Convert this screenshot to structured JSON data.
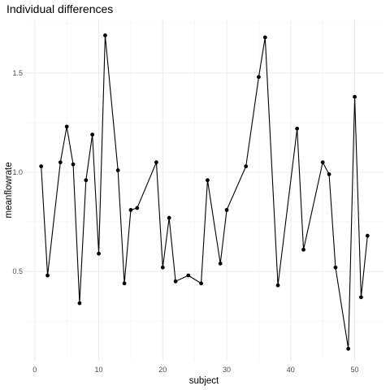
{
  "chart_data": {
    "type": "line",
    "title": "Individual differences",
    "xlabel": "subject",
    "ylabel": "meanflowrate",
    "xlim": [
      -1.5,
      54.5
    ],
    "ylim": [
      0.05,
      1.77
    ],
    "x_ticks": [
      0,
      10,
      20,
      30,
      40,
      50
    ],
    "y_ticks": [
      0.5,
      1.0,
      1.5
    ],
    "y_tick_labels": [
      "0.5",
      "1.0",
      "1.5"
    ],
    "grid": true,
    "legend": false,
    "line_color": "#000000",
    "grid_color": "#ebebeb",
    "series": [
      {
        "x": [
          1,
          2,
          4,
          5,
          6,
          7,
          8,
          9,
          10,
          11,
          13,
          14,
          15,
          16,
          19,
          20,
          21,
          22,
          24,
          26,
          27,
          29,
          30,
          33,
          35,
          36,
          38,
          41,
          42,
          45,
          46,
          47,
          49,
          50,
          51,
          52
        ],
        "y": [
          1.03,
          0.48,
          1.05,
          1.23,
          1.04,
          0.34,
          0.96,
          1.19,
          0.59,
          1.69,
          1.01,
          0.44,
          0.81,
          0.82,
          1.05,
          0.52,
          0.77,
          0.45,
          0.48,
          0.44,
          0.96,
          0.54,
          0.81,
          1.03,
          1.48,
          1.68,
          0.43,
          1.22,
          0.61,
          1.05,
          0.99,
          0.52,
          0.11,
          1.38,
          0.37,
          0.68
        ]
      }
    ]
  }
}
